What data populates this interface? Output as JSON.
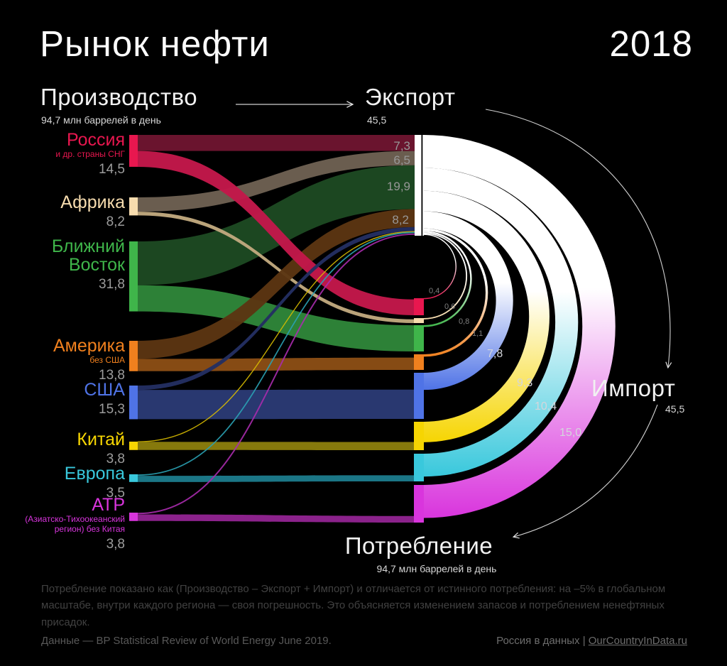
{
  "header": {
    "title": "Рынок нефти",
    "year": "2018"
  },
  "sections": {
    "production": {
      "label": "Производство",
      "sub": "94,7 млн баррелей в день"
    },
    "export": {
      "label": "Экспорт",
      "sub": "45,5"
    },
    "import": {
      "label": "Импорт",
      "sub": "45,5"
    },
    "consumption": {
      "label": "Потребление",
      "sub": "94,7 млн баррелей в день"
    }
  },
  "footnote": "Потребление показано как (Производство – Экспорт + Импорт) и отличается от истинного потребления: на –5% в глобальном масштабе, внутри каждого региона — своя погрешность. Это объясняется изменением запасов и потреблением ненефтяных присадок.",
  "footer": {
    "left": "Данные — BP Statistical Review of World Energy June 2019.",
    "right_prefix": "Россия в данных | ",
    "right_link": "OurCountryInData.ru"
  },
  "chart_data": {
    "type": "sankey-circular",
    "title": "Рынок нефти 2018",
    "units": "млн баррелей в день",
    "totals": {
      "production": 94.7,
      "export": 45.5,
      "import": 45.5,
      "consumption": 94.7,
      "production_label": "94,7 млн баррелей в день",
      "export_label": "45,5",
      "import_label": "45,5",
      "consumption_label": "94,7 млн баррелей в день"
    },
    "regions": [
      {
        "id": "russia",
        "name_lines": [
          "Россия"
        ],
        "sub_lines": [
          "и др. страны СНГ"
        ],
        "production": 14.5,
        "production_label": "14,5",
        "export": 7.3,
        "export_label": "7,3",
        "import": 0.4,
        "import_label": "0,4",
        "color": "#e8174f",
        "flow_export": "#6e1530",
        "flow_domestic": "#c2184a"
      },
      {
        "id": "africa",
        "name_lines": [
          "Африка"
        ],
        "sub_lines": [],
        "production": 8.2,
        "production_label": "8,2",
        "export": 6.5,
        "export_label": "6,5",
        "import": 0.6,
        "import_label": "0,6",
        "color": "#f7dcae",
        "flow_export": "#6e6152",
        "flow_domestic": "#c0a87e"
      },
      {
        "id": "middleeast",
        "name_lines": [
          "Ближний",
          "Восток"
        ],
        "sub_lines": [],
        "production": 31.8,
        "production_label": "31,8",
        "export": 19.9,
        "export_label": "19,9",
        "import": 0.8,
        "import_label": "0,8",
        "color": "#3fb54a",
        "flow_export": "#1d4a22",
        "flow_domestic": "#2e8539"
      },
      {
        "id": "america",
        "name_lines": [
          "Америка"
        ],
        "sub_lines": [
          "без США"
        ],
        "production": 13.8,
        "production_label": "13,8",
        "export": 8.2,
        "export_label": "8,2",
        "import": 1.1,
        "import_label": "1,1",
        "color": "#f0801e",
        "flow_export": "#5c3512",
        "flow_domestic": "#8a4d15"
      },
      {
        "id": "usa",
        "name_lines": [
          "США"
        ],
        "sub_lines": [],
        "production": 15.3,
        "production_label": "15,3",
        "export": 2.0,
        "export_label": null,
        "import": 7.8,
        "import_label": "7,8",
        "color": "#4f73e6",
        "flow_export": "#232f62",
        "flow_domestic": "#2a3a74"
      },
      {
        "id": "china",
        "name_lines": [
          "Китай"
        ],
        "sub_lines": [],
        "production": 3.8,
        "production_label": "3,8",
        "export": 0.1,
        "export_label": null,
        "import": 9.3,
        "import_label": "9,3",
        "color": "#f6d502",
        "flow_export": "#d9bd00",
        "flow_domestic": "#8a7d0c"
      },
      {
        "id": "europe",
        "name_lines": [
          "Европа"
        ],
        "sub_lines": [],
        "production": 3.5,
        "production_label": "3,5",
        "export": 0.7,
        "export_label": null,
        "import": 10.4,
        "import_label": "10,4",
        "color": "#39c8dc",
        "flow_export": "#2aa2b4",
        "flow_domestic": "#1c7a8a"
      },
      {
        "id": "apac",
        "name_lines": [
          "АТР"
        ],
        "sub_lines": [
          "(Азиатско-Тихоокеанский",
          "регион) без Китая"
        ],
        "production": 3.8,
        "production_label": "3,8",
        "export": 0.8,
        "export_label": null,
        "import": 15.0,
        "import_label": "15,0",
        "color": "#d935dd",
        "flow_export": "#a92bad",
        "flow_domestic": "#90238f"
      }
    ],
    "colors": {
      "background": "#000000",
      "export_node": "#ffffff",
      "arrow": "#d0d0d0",
      "value_gray": "#9c9c9c"
    }
  }
}
